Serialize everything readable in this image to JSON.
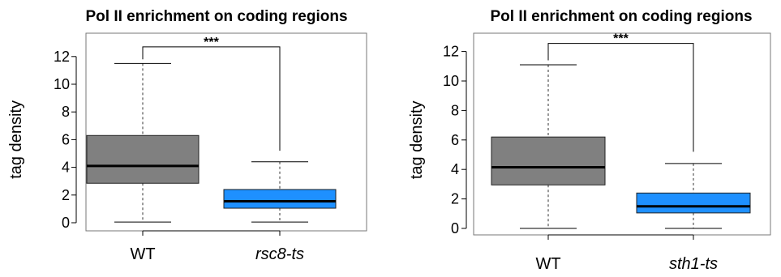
{
  "chart_data": [
    {
      "type": "box",
      "title": "Pol II enrichment on coding regions",
      "ylabel": "tag density",
      "xlabel": "",
      "ylim": [
        -0.3,
        13.2
      ],
      "yticks": [
        0,
        2,
        4,
        6,
        8,
        10,
        12
      ],
      "categories": [
        "WT",
        "rsc8-ts"
      ],
      "category_italic": [
        false,
        true
      ],
      "boxes": [
        {
          "category": "WT",
          "whisker_low": 0.05,
          "q1": 2.85,
          "median": 4.1,
          "q3": 6.3,
          "whisker_high": 11.5,
          "color": "#808080"
        },
        {
          "category": "rsc8-ts",
          "whisker_low": 0.05,
          "q1": 1.05,
          "median": 1.55,
          "q3": 2.4,
          "whisker_high": 4.4,
          "color": "#1e90ff"
        }
      ],
      "significance": {
        "label": "***",
        "from": "WT",
        "to": "rsc8-ts",
        "level": 12.7
      },
      "grid": false
    },
    {
      "type": "box",
      "title": "Pol II enrichment on coding regions",
      "ylabel": "tag density",
      "xlabel": "",
      "ylim": [
        -0.5,
        13.3
      ],
      "yticks": [
        0,
        2,
        4,
        6,
        8,
        10,
        12
      ],
      "categories": [
        "WT",
        "sth1-ts"
      ],
      "category_italic": [
        false,
        true
      ],
      "boxes": [
        {
          "category": "WT",
          "whisker_low": 0.0,
          "q1": 2.95,
          "median": 4.15,
          "q3": 6.2,
          "whisker_high": 11.1,
          "color": "#808080"
        },
        {
          "category": "sth1-ts",
          "whisker_low": 0.0,
          "q1": 1.05,
          "median": 1.5,
          "q3": 2.4,
          "whisker_high": 4.4,
          "color": "#1e90ff"
        }
      ],
      "significance": {
        "label": "***",
        "from": "WT",
        "to": "sth1-ts",
        "level": 12.55
      },
      "grid": false
    }
  ]
}
